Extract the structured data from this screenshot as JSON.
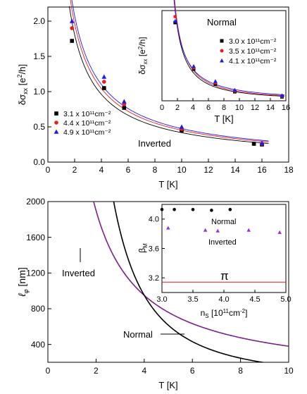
{
  "chart_data": [
    {
      "type": "scatter",
      "panel": "top-main",
      "xlabel": "T [K]",
      "ylabel": "δσ_xx [e²/h]",
      "xlim": [
        0,
        18
      ],
      "ylim": [
        0,
        2.2
      ],
      "x_ticks": [
        "0",
        "2",
        "4",
        "6",
        "8",
        "10",
        "12",
        "14",
        "16",
        "18"
      ],
      "y_ticks": [
        "0.0",
        "0.5",
        "1.0",
        "1.5",
        "2.0"
      ],
      "annotation": "Inverted",
      "legend_position": "left-middle",
      "series": [
        {
          "name": "3.1 x 10¹¹cm⁻²",
          "marker": "square",
          "color": "#000000",
          "x": [
            1.8,
            4.2,
            5.7,
            10.0,
            15.4,
            16.0
          ],
          "y": [
            1.72,
            1.05,
            0.77,
            0.45,
            0.26,
            0.25
          ]
        },
        {
          "name": "4.4 x 10¹¹cm⁻²",
          "marker": "circle",
          "color": "#ee1c1c",
          "x": [
            1.8,
            4.2,
            5.7,
            10.0,
            16.0
          ],
          "y": [
            1.9,
            1.14,
            0.82,
            0.47,
            0.26
          ]
        },
        {
          "name": "4.9 x 10¹¹cm⁻²",
          "marker": "triangle",
          "color": "#1a1aee",
          "x": [
            1.8,
            4.2,
            5.7,
            10.0,
            16.0
          ],
          "y": [
            2.0,
            1.21,
            0.86,
            0.5,
            0.27
          ]
        }
      ]
    },
    {
      "type": "scatter",
      "panel": "top-inset",
      "xlabel": "T [K]",
      "ylabel": "δσ_xx [e²/h]",
      "xlim": [
        0,
        16
      ],
      "ylim": [
        0,
        0.3
      ],
      "x_ticks": [
        "0",
        "2",
        "4",
        "6",
        "8",
        "10",
        "12",
        "14",
        "16"
      ],
      "title": "Normal",
      "series": [
        {
          "name": "3.0 x 10¹¹cm⁻²",
          "marker": "square",
          "color": "#000000",
          "x": [
            1.7,
            4.1,
            6.9,
            9.4,
            15.5
          ],
          "y": [
            0.26,
            0.105,
            0.055,
            0.03,
            0.013
          ]
        },
        {
          "name": "3.5 x 10¹¹cm⁻²",
          "marker": "circle",
          "color": "#ee1c1c",
          "x": [
            1.7,
            4.1,
            6.9,
            9.4,
            15.5
          ],
          "y": [
            0.28,
            0.11,
            0.06,
            0.033,
            0.015
          ]
        },
        {
          "name": "4.1 x 10¹¹cm⁻²",
          "marker": "triangle",
          "color": "#1a1aee",
          "x": [
            1.7,
            4.1,
            6.9,
            9.4,
            15.5
          ],
          "y": [
            0.265,
            0.115,
            0.065,
            0.036,
            0.018
          ]
        }
      ]
    },
    {
      "type": "line",
      "panel": "bottom-main",
      "xlabel": "T [K]",
      "ylabel": "ℓ_φ [nm]",
      "xlim": [
        0,
        10
      ],
      "ylim": [
        200,
        2000
      ],
      "x_ticks": [
        "0",
        "2",
        "4",
        "6",
        "8",
        "10"
      ],
      "y_ticks": [
        "400",
        "800",
        "1200",
        "1600",
        "2000"
      ],
      "series": [
        {
          "name": "Inverted",
          "color": "#7a1f8e",
          "coef": 3800,
          "exponent": 1.0
        },
        {
          "name": "Normal",
          "color": "#000000",
          "coef": 14200,
          "exponent": 1.95
        }
      ],
      "labels": {
        "inverted": "Inverted",
        "normal": "Normal"
      }
    },
    {
      "type": "scatter",
      "panel": "bottom-inset",
      "xlabel": "n_S [10¹¹cm⁻²]",
      "ylabel": "β_M",
      "xlim": [
        3.0,
        5.0
      ],
      "ylim": [
        3.0,
        4.2
      ],
      "x_ticks": [
        "3.0",
        "3.5",
        "4.0",
        "4.5",
        "5.0"
      ],
      "y_ticks": [
        "3.2",
        "3.6",
        "4.0"
      ],
      "reference_line": {
        "label": "π",
        "value": 3.14159,
        "color": "#e41a1a"
      },
      "series": [
        {
          "name": "Normal",
          "marker": "circle",
          "color": "#000000",
          "x": [
            3.0,
            3.2,
            3.5,
            3.8,
            4.1
          ],
          "y": [
            4.13,
            4.13,
            4.13,
            4.12,
            4.13
          ]
        },
        {
          "name": "Inverted",
          "marker": "triangle",
          "color": "#9b30d9",
          "x": [
            3.1,
            3.7,
            3.9,
            4.4,
            4.9
          ],
          "y": [
            3.88,
            3.85,
            3.84,
            3.85,
            3.82
          ]
        }
      ]
    }
  ]
}
